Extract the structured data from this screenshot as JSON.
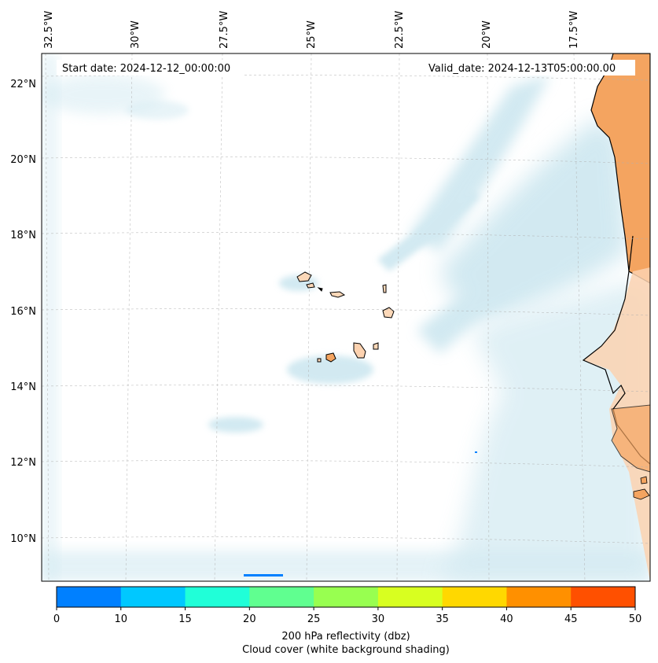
{
  "map": {
    "start_date": "Start date: 2024-12-12_00:00:00",
    "valid_date": "Valid_date: 2024-12-13T05:00:00.00",
    "longitude_labels": [
      "32.5°W",
      "30°W",
      "27.5°W",
      "25°W",
      "22.5°W",
      "20°W",
      "17.5°W"
    ],
    "latitude_labels": [
      "22°N",
      "20°N",
      "18°N",
      "16°N",
      "14°N",
      "12°N",
      "10°N"
    ],
    "land_color": "#f4a460",
    "cloud_color": "#add8e6",
    "coast_color": "#000000"
  },
  "colorbar": {
    "ticks": [
      "0",
      "10",
      "15",
      "20",
      "25",
      "30",
      "35",
      "40",
      "45",
      "50"
    ],
    "colors": [
      "#0080ff",
      "#00c8ff",
      "#20ffd8",
      "#60ff90",
      "#98ff50",
      "#d8ff20",
      "#ffd800",
      "#ff9000",
      "#ff5000"
    ],
    "label_line1": "200 hPa reflectivity (dbz)",
    "label_line2": "Cloud cover (white background shading)"
  }
}
